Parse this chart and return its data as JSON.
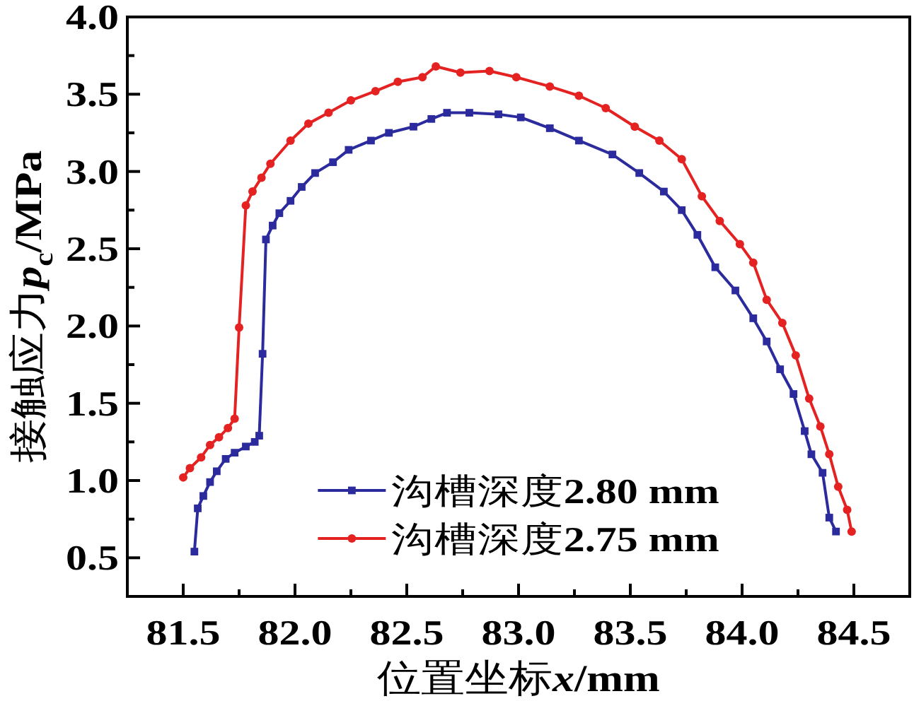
{
  "chart_data": {
    "type": "line",
    "xlabel": "位置坐标x/mm",
    "ylabel": "接触应力p$_{c}$/MPa",
    "xlim": [
      81.25,
      84.75
    ],
    "xticks": [
      81.5,
      {
        "value": 81.75,
        "label": null
      },
      {
        "value": 82,
        "label": "82.0"
      },
      {
        "value": 82.25,
        "label": null
      },
      82.5,
      {
        "value": 82.75,
        "label": null
      },
      {
        "value": 83,
        "label": "83.0"
      },
      {
        "value": 83.25,
        "label": null
      },
      83.5,
      {
        "value": 83.75,
        "label": null
      },
      {
        "value": 84,
        "label": "84.0"
      },
      {
        "value": 84.25,
        "label": null
      },
      84.5
    ],
    "ylim": [
      0.25,
      4.0
    ],
    "yticks": [
      0.5,
      {
        "value": 0.75,
        "label": null
      },
      {
        "value": 1,
        "label": "1.0"
      },
      {
        "value": 1.25,
        "label": null
      },
      1.5,
      {
        "value": 1.75,
        "label": null
      },
      {
        "value": 2,
        "label": "2.0"
      },
      {
        "value": 2.25,
        "label": null
      },
      2.5,
      {
        "value": 2.75,
        "label": null
      },
      {
        "value": 3,
        "label": "3.0"
      },
      {
        "value": 3.25,
        "label": null
      },
      3.5,
      {
        "value": 3.75,
        "label": null
      },
      {
        "value": 4,
        "label": "4.0"
      }
    ],
    "legend": "bottom",
    "series": [
      {
        "name": "沟槽深度2.80 mm",
        "color": "#2b2b9e",
        "marker": "square",
        "x": [
          81.55,
          81.565,
          81.59,
          81.62,
          81.65,
          81.69,
          81.73,
          81.78,
          81.82,
          81.84,
          81.855,
          81.87,
          81.9,
          81.93,
          81.98,
          82.03,
          82.09,
          82.17,
          82.24,
          82.34,
          82.42,
          82.53,
          82.61,
          82.68,
          82.78,
          82.91,
          83.01,
          83.14,
          83.27,
          83.42,
          83.54,
          83.65,
          83.73,
          83.8,
          83.88,
          83.97,
          84.05,
          84.11,
          84.17,
          84.23,
          84.28,
          84.31,
          84.36,
          84.39,
          84.42
        ],
        "values": [
          0.54,
          0.82,
          0.9,
          0.99,
          1.06,
          1.14,
          1.18,
          1.22,
          1.25,
          1.29,
          1.82,
          2.56,
          2.65,
          2.73,
          2.81,
          2.9,
          2.99,
          3.06,
          3.14,
          3.2,
          3.25,
          3.29,
          3.34,
          3.38,
          3.38,
          3.37,
          3.35,
          3.28,
          3.2,
          3.11,
          2.99,
          2.87,
          2.75,
          2.59,
          2.38,
          2.23,
          2.05,
          1.9,
          1.72,
          1.56,
          1.32,
          1.17,
          1.05,
          0.76,
          0.67
        ]
      },
      {
        "name": "沟槽深度2.75 mm",
        "color": "#e52222",
        "marker": "circle",
        "x": [
          81.5,
          81.53,
          81.58,
          81.62,
          81.66,
          81.7,
          81.73,
          81.75,
          81.78,
          81.81,
          81.85,
          81.89,
          81.98,
          82.06,
          82.15,
          82.25,
          82.36,
          82.46,
          82.57,
          82.63,
          82.74,
          82.87,
          82.99,
          83.14,
          83.27,
          83.39,
          83.52,
          83.63,
          83.73,
          83.82,
          83.9,
          83.99,
          84.05,
          84.11,
          84.18,
          84.24,
          84.3,
          84.35,
          84.39,
          84.43,
          84.47,
          84.49
        ],
        "values": [
          1.02,
          1.08,
          1.15,
          1.23,
          1.28,
          1.34,
          1.4,
          1.99,
          2.78,
          2.87,
          2.96,
          3.05,
          3.2,
          3.31,
          3.38,
          3.46,
          3.52,
          3.58,
          3.61,
          3.68,
          3.64,
          3.65,
          3.61,
          3.55,
          3.49,
          3.41,
          3.29,
          3.2,
          3.08,
          2.84,
          2.68,
          2.53,
          2.41,
          2.17,
          2.02,
          1.81,
          1.53,
          1.35,
          1.17,
          0.96,
          0.81,
          0.67
        ]
      }
    ]
  }
}
